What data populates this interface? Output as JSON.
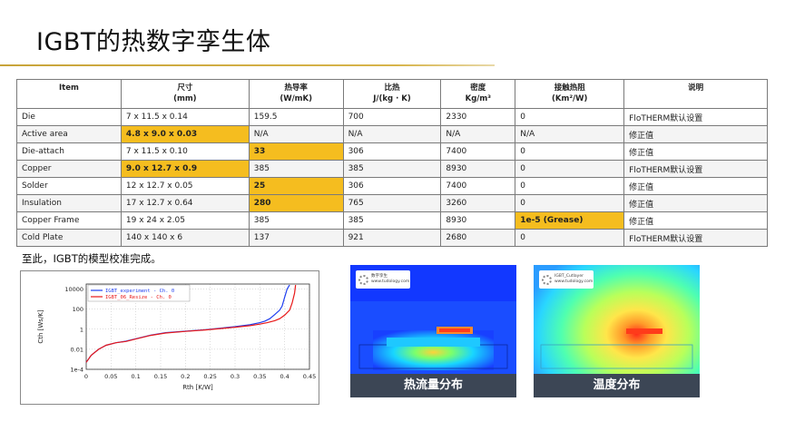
{
  "title": "IGBT的热数字孪生体",
  "table": {
    "headers": [
      {
        "l1": "Item",
        "l2": ""
      },
      {
        "l1": "尺寸",
        "l2": "(mm)"
      },
      {
        "l1": "热导率",
        "l2": "(W/mK)"
      },
      {
        "l1": "比热",
        "l2": "J/(kg · K)"
      },
      {
        "l1": "密度",
        "l2": "Kg/m³"
      },
      {
        "l1": "接触热阻",
        "l2": "(Km²/W)"
      },
      {
        "l1": "说明",
        "l2": ""
      }
    ],
    "rows": [
      {
        "item": "Die",
        "size": "7 x 11.5 x 0.14",
        "k": "159.5",
        "cp": "700",
        "rho": "2330",
        "rc": "0",
        "note": "FloTHERM默认设置"
      },
      {
        "item": "Active area",
        "size": "4.8 x 9.0 x 0.03",
        "k": "N/A",
        "cp": "N/A",
        "rho": "N/A",
        "rc": "N/A",
        "note": "修正值"
      },
      {
        "item": "Die-attach",
        "size": "7 x 11.5 x 0.10",
        "k": "33",
        "cp": "306",
        "rho": "7400",
        "rc": "0",
        "note": "修正值"
      },
      {
        "item": "Copper",
        "size": "9.0 x 12.7 x 0.9",
        "k": "385",
        "cp": "385",
        "rho": "8930",
        "rc": "0",
        "note": "FloTHERM默认设置"
      },
      {
        "item": "Solder",
        "size": "12 x 12.7 x 0.05",
        "k": "25",
        "cp": "306",
        "rho": "7400",
        "rc": "0",
        "note": "修正值"
      },
      {
        "item": "Insulation",
        "size": "17 x 12.7 x 0.64",
        "k": "280",
        "cp": "765",
        "rho": "3260",
        "rc": "0",
        "note": "修正值"
      },
      {
        "item": "Copper Frame",
        "size": "19 x 24 x 2.05",
        "k": "385",
        "cp": "385",
        "rho": "8930",
        "rc": "1e-5 (Grease)",
        "note": "修正值"
      },
      {
        "item": "Cold Plate",
        "size": "140 x 140 x 6",
        "k": "137",
        "cp": "921",
        "rho": "2680",
        "rc": "0",
        "note": "FloTHERM默认设置"
      }
    ]
  },
  "note": "至此，IGBT的模型校准完成。",
  "chart_data": {
    "type": "line",
    "xlabel": "Rth [K/W]",
    "ylabel": "Cth [Ws/K]",
    "xlim": [
      0,
      0.45
    ],
    "ylim_log10": [
      -4,
      4.5
    ],
    "x_ticks": [
      "0",
      "0.05",
      "0.1",
      "0.15",
      "0.2",
      "0.25",
      "0.3",
      "0.35",
      "0.4",
      "0.45"
    ],
    "y_ticks": [
      "10000",
      "100",
      "1",
      "0.01",
      "1e-4"
    ],
    "legend_position": "top-left",
    "series": [
      {
        "name": "IGBT_experiment - Ch. 0",
        "color": "#1f3ff0",
        "x": [
          0.0,
          0.01,
          0.025,
          0.04,
          0.06,
          0.08,
          0.1,
          0.13,
          0.16,
          0.2,
          0.24,
          0.27,
          0.3,
          0.33,
          0.35,
          0.36,
          0.37,
          0.38,
          0.39,
          0.395,
          0.4,
          0.405,
          0.41
        ],
        "y": [
          -3.3,
          -2.6,
          -2.0,
          -1.6,
          -1.35,
          -1.2,
          -0.95,
          -0.6,
          -0.35,
          -0.2,
          -0.05,
          0.1,
          0.25,
          0.45,
          0.65,
          0.8,
          1.05,
          1.45,
          1.9,
          2.3,
          3.2,
          4.0,
          4.4
        ]
      },
      {
        "name": "IGBT_06_Resize - Ch. 0",
        "color": "#e81818",
        "x": [
          0.0,
          0.01,
          0.025,
          0.04,
          0.06,
          0.08,
          0.1,
          0.13,
          0.16,
          0.2,
          0.24,
          0.27,
          0.3,
          0.33,
          0.35,
          0.365,
          0.38,
          0.39,
          0.4,
          0.41,
          0.415,
          0.42,
          0.422
        ],
        "y": [
          -3.3,
          -2.6,
          -2.0,
          -1.6,
          -1.35,
          -1.22,
          -0.98,
          -0.62,
          -0.38,
          -0.22,
          -0.08,
          0.06,
          0.2,
          0.35,
          0.5,
          0.65,
          0.85,
          1.05,
          1.4,
          1.9,
          2.6,
          3.6,
          4.4
        ]
      }
    ]
  },
  "sims": [
    {
      "caption": "热流量分布",
      "logo_line1": "数字孪生",
      "logo_line2": "www.tudology.com"
    },
    {
      "caption": "温度分布",
      "logo_line1": "IGBT_Cutlayer",
      "logo_line2": "www.tudology.com"
    }
  ],
  "colors": {
    "highlight": "#f5bd1f",
    "title_rule": "#c8a43a",
    "caption_bg": "#3c4655"
  }
}
